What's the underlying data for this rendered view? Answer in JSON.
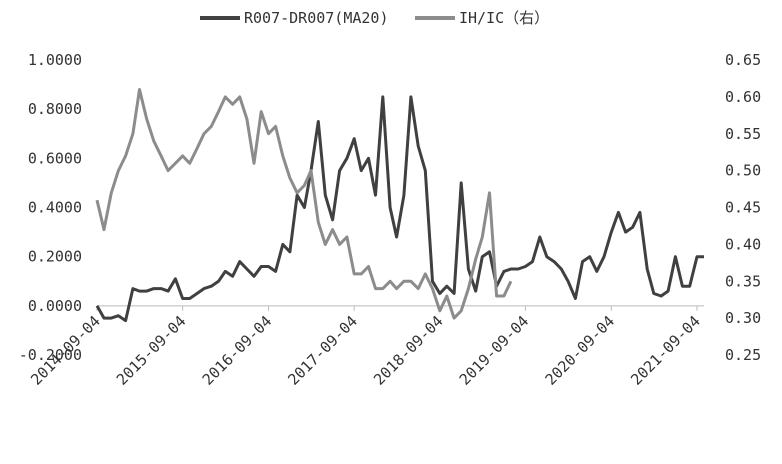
{
  "chart_data": {
    "type": "line",
    "x": [
      "2014-09-04",
      "2014-10-04",
      "2014-11-04",
      "2014-12-04",
      "2015-01-04",
      "2015-02-04",
      "2015-03-04",
      "2015-04-04",
      "2015-05-04",
      "2015-06-04",
      "2015-07-04",
      "2015-08-04",
      "2015-09-04",
      "2015-10-04",
      "2015-11-04",
      "2015-12-04",
      "2016-01-04",
      "2016-02-04",
      "2016-03-04",
      "2016-04-04",
      "2016-05-04",
      "2016-06-04",
      "2016-07-04",
      "2016-08-04",
      "2016-09-04",
      "2016-10-04",
      "2016-11-04",
      "2016-12-04",
      "2017-01-04",
      "2017-02-04",
      "2017-03-04",
      "2017-04-04",
      "2017-05-04",
      "2017-06-04",
      "2017-07-04",
      "2017-08-04",
      "2017-09-04",
      "2017-10-04",
      "2017-11-04",
      "2017-12-04",
      "2018-01-04",
      "2018-02-04",
      "2018-03-04",
      "2018-04-04",
      "2018-05-04",
      "2018-06-04",
      "2018-07-04",
      "2018-08-04",
      "2018-09-04",
      "2018-10-04",
      "2018-11-04",
      "2018-12-04",
      "2019-01-04",
      "2019-02-04",
      "2019-03-04",
      "2019-04-04",
      "2019-05-04",
      "2019-06-04",
      "2019-07-04",
      "2019-08-04",
      "2019-09-04",
      "2019-10-04",
      "2019-11-04",
      "2019-12-04",
      "2020-01-04",
      "2020-02-04",
      "2020-03-04",
      "2020-04-04",
      "2020-05-04",
      "2020-06-04",
      "2020-07-04",
      "2020-08-04",
      "2020-09-04",
      "2020-10-04",
      "2020-11-04",
      "2020-12-04",
      "2021-01-04",
      "2021-02-04",
      "2021-03-04",
      "2021-04-04",
      "2021-05-04",
      "2021-06-04",
      "2021-07-04",
      "2021-08-04",
      "2021-09-04",
      "2021-10-04"
    ],
    "series": [
      {
        "name": "R007-DR007(MA20)",
        "color": "#404040",
        "axis": "y",
        "values": [
          0.0,
          -0.05,
          -0.05,
          -0.04,
          -0.06,
          0.07,
          0.06,
          0.06,
          0.07,
          0.07,
          0.06,
          0.11,
          0.03,
          0.03,
          0.05,
          0.07,
          0.08,
          0.1,
          0.14,
          0.12,
          0.18,
          0.15,
          0.12,
          0.16,
          0.16,
          0.14,
          0.25,
          0.22,
          0.45,
          0.4,
          0.55,
          0.75,
          0.45,
          0.35,
          0.55,
          0.6,
          0.68,
          0.55,
          0.6,
          0.45,
          0.85,
          0.4,
          0.28,
          0.45,
          0.85,
          0.65,
          0.55,
          0.1,
          0.05,
          0.08,
          0.05,
          0.5,
          0.15,
          0.06,
          0.2,
          0.22,
          0.08,
          0.14,
          0.15,
          0.15,
          0.16,
          0.18,
          0.28,
          0.2,
          0.18,
          0.15,
          0.1,
          0.03,
          0.18,
          0.2,
          0.14,
          0.2,
          0.3,
          0.38,
          0.3,
          0.32,
          0.38,
          0.15,
          0.05,
          0.04,
          0.06,
          0.2,
          0.08,
          0.08,
          0.2,
          0.2
        ]
      },
      {
        "name": "IH/IC（右）",
        "color": "#8c8c8c",
        "axis": "y2",
        "values": [
          0.46,
          0.42,
          0.47,
          0.5,
          0.52,
          0.55,
          0.61,
          0.57,
          0.54,
          0.52,
          0.5,
          0.51,
          0.52,
          0.51,
          0.53,
          0.55,
          0.56,
          0.58,
          0.6,
          0.59,
          0.6,
          0.57,
          0.51,
          0.58,
          0.55,
          0.56,
          0.52,
          0.49,
          0.47,
          0.48,
          0.5,
          0.43,
          0.4,
          0.42,
          0.4,
          0.41,
          0.36,
          0.36,
          0.37,
          0.34,
          0.34,
          0.35,
          0.34,
          0.35,
          0.35,
          0.34,
          0.36,
          0.34,
          0.31,
          0.33,
          0.3,
          0.31,
          0.34,
          0.38,
          0.41,
          0.47,
          0.33,
          0.33,
          0.35,
          null,
          null,
          null,
          null,
          null,
          null,
          null,
          null,
          null,
          null,
          null,
          null,
          null,
          null,
          null,
          null,
          null,
          null,
          null,
          null,
          null,
          null,
          null,
          null,
          null,
          null,
          null
        ]
      }
    ],
    "xlim": [
      "2014-09-04",
      "2021-10-04"
    ],
    "xticks": [
      "2014-09-04",
      "2015-09-04",
      "2016-09-04",
      "2017-09-04",
      "2018-09-04",
      "2019-09-04",
      "2020-09-04",
      "2021-09-04"
    ],
    "ylim": [
      -0.2,
      1.0
    ],
    "yticks": [
      {
        "value": -0.2,
        "label": "-0.2000"
      },
      {
        "value": 0,
        "label": "0.0000"
      },
      {
        "value": 0.2,
        "label": "0.2000"
      },
      {
        "value": 0.4,
        "label": "0.4000"
      },
      {
        "value": 0.6,
        "label": "0.6000"
      },
      {
        "value": 0.8,
        "label": "0.8000"
      },
      {
        "value": 1,
        "label": "1.0000"
      }
    ],
    "y2lim": [
      0.25,
      0.65
    ],
    "y2ticks": [
      0.25,
      {
        "value": 0.3,
        "label": "0.30"
      },
      0.35,
      {
        "value": 0.4,
        "label": "0.40"
      },
      0.45,
      {
        "value": 0.5,
        "label": "0.50"
      },
      0.55,
      {
        "value": 0.6,
        "label": "0.60"
      },
      0.65
    ],
    "legend": "top"
  }
}
